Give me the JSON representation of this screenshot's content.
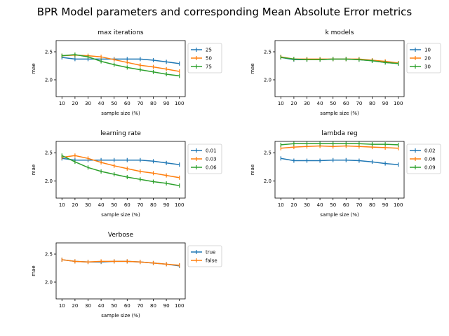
{
  "suptitle": "BPR Model parameters and corresponding Mean Absolute Error metrics",
  "chart_data": [
    {
      "type": "line",
      "title": "max iterations",
      "xlabel": "sample size (%)",
      "ylabel": "mae",
      "x": [
        10,
        20,
        30,
        40,
        50,
        60,
        70,
        80,
        90,
        100
      ],
      "ylim": [
        1.7,
        2.7
      ],
      "yticks": [
        2.0,
        2.5
      ],
      "legend_position": "outside-right",
      "series": [
        {
          "name": "25",
          "color": "#1f77b4",
          "values": [
            2.4,
            2.37,
            2.37,
            2.37,
            2.37,
            2.37,
            2.37,
            2.35,
            2.32,
            2.29
          ]
        },
        {
          "name": "50",
          "color": "#ff7f0e",
          "values": [
            2.43,
            2.44,
            2.43,
            2.41,
            2.36,
            2.31,
            2.26,
            2.23,
            2.19,
            2.15
          ]
        },
        {
          "name": "75",
          "color": "#2ca02c",
          "values": [
            2.43,
            2.45,
            2.41,
            2.33,
            2.27,
            2.22,
            2.18,
            2.14,
            2.1,
            2.07
          ]
        }
      ]
    },
    {
      "type": "line",
      "title": "k models",
      "xlabel": "sample size (%)",
      "ylabel": "mae",
      "x": [
        10,
        20,
        30,
        40,
        50,
        60,
        70,
        80,
        90,
        100
      ],
      "ylim": [
        1.7,
        2.7
      ],
      "yticks": [
        2.0,
        2.5
      ],
      "legend_position": "outside-right",
      "series": [
        {
          "name": "10",
          "color": "#1f77b4",
          "values": [
            2.4,
            2.36,
            2.36,
            2.36,
            2.37,
            2.37,
            2.36,
            2.34,
            2.31,
            2.29
          ]
        },
        {
          "name": "20",
          "color": "#ff7f0e",
          "values": [
            2.41,
            2.37,
            2.37,
            2.37,
            2.37,
            2.37,
            2.37,
            2.35,
            2.33,
            2.3
          ]
        },
        {
          "name": "30",
          "color": "#2ca02c",
          "values": [
            2.4,
            2.37,
            2.36,
            2.36,
            2.37,
            2.37,
            2.36,
            2.34,
            2.31,
            2.29
          ]
        }
      ]
    },
    {
      "type": "line",
      "title": "learning rate",
      "xlabel": "sample size (%)",
      "ylabel": "mae",
      "x": [
        10,
        20,
        30,
        40,
        50,
        60,
        70,
        80,
        90,
        100
      ],
      "ylim": [
        1.7,
        2.7
      ],
      "yticks": [
        2.0,
        2.5
      ],
      "legend_position": "outside-right",
      "series": [
        {
          "name": "0.01",
          "color": "#1f77b4",
          "values": [
            2.4,
            2.37,
            2.37,
            2.37,
            2.37,
            2.37,
            2.37,
            2.35,
            2.32,
            2.29
          ]
        },
        {
          "name": "0.03",
          "color": "#ff7f0e",
          "values": [
            2.42,
            2.45,
            2.4,
            2.33,
            2.27,
            2.22,
            2.17,
            2.14,
            2.1,
            2.06
          ]
        },
        {
          "name": "0.06",
          "color": "#2ca02c",
          "values": [
            2.45,
            2.34,
            2.24,
            2.17,
            2.12,
            2.07,
            2.03,
            1.99,
            1.96,
            1.92
          ]
        }
      ]
    },
    {
      "type": "line",
      "title": "lambda reg",
      "xlabel": "sample size (%)",
      "ylabel": "mae",
      "x": [
        10,
        20,
        30,
        40,
        50,
        60,
        70,
        80,
        90,
        100
      ],
      "ylim": [
        1.7,
        2.7
      ],
      "yticks": [
        2.0,
        2.5
      ],
      "legend_position": "outside-right",
      "series": [
        {
          "name": "0.02",
          "color": "#1f77b4",
          "values": [
            2.4,
            2.36,
            2.36,
            2.36,
            2.37,
            2.37,
            2.36,
            2.34,
            2.31,
            2.29
          ]
        },
        {
          "name": "0.06",
          "color": "#ff7f0e",
          "values": [
            2.58,
            2.6,
            2.61,
            2.62,
            2.61,
            2.62,
            2.61,
            2.6,
            2.59,
            2.58
          ]
        },
        {
          "name": "0.09",
          "color": "#2ca02c",
          "values": [
            2.64,
            2.66,
            2.66,
            2.66,
            2.66,
            2.66,
            2.66,
            2.65,
            2.65,
            2.64
          ]
        }
      ]
    },
    {
      "type": "line",
      "title": "Verbose",
      "xlabel": "sample size (%)",
      "ylabel": "mae",
      "x": [
        10,
        20,
        30,
        40,
        50,
        60,
        70,
        80,
        90,
        100
      ],
      "ylim": [
        1.7,
        2.7
      ],
      "yticks": [
        2.0,
        2.5
      ],
      "legend_position": "outside-right",
      "series": [
        {
          "name": "true",
          "color": "#1f77b4",
          "values": [
            2.4,
            2.37,
            2.36,
            2.36,
            2.37,
            2.37,
            2.36,
            2.34,
            2.32,
            2.29
          ]
        },
        {
          "name": "false",
          "color": "#ff7f0e",
          "values": [
            2.4,
            2.37,
            2.36,
            2.37,
            2.37,
            2.37,
            2.36,
            2.34,
            2.32,
            2.3
          ]
        }
      ]
    }
  ]
}
